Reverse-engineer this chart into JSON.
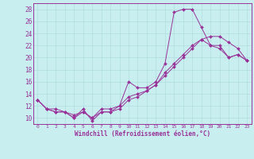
{
  "xlabel": "Windchill (Refroidissement éolien,°C)",
  "bg_color": "#c8eef0",
  "line_color": "#993399",
  "grid_color": "#b0dde0",
  "xlim": [
    -0.5,
    23.5
  ],
  "ylim": [
    9.0,
    29.0
  ],
  "xticks": [
    0,
    1,
    2,
    3,
    4,
    5,
    6,
    7,
    8,
    9,
    10,
    11,
    12,
    13,
    14,
    15,
    16,
    17,
    18,
    19,
    20,
    21,
    22,
    23
  ],
  "yticks": [
    10,
    12,
    14,
    16,
    18,
    20,
    22,
    24,
    26,
    28
  ],
  "line1_x": [
    0,
    1,
    2,
    3,
    4,
    5,
    6,
    7,
    8,
    9,
    10,
    11,
    12,
    13,
    14,
    15,
    16,
    17,
    18,
    19,
    20,
    21,
    22,
    23
  ],
  "line1_y": [
    13.0,
    11.5,
    11.0,
    11.0,
    10.0,
    11.5,
    9.5,
    11.0,
    11.0,
    12.0,
    16.0,
    15.0,
    15.0,
    16.0,
    19.0,
    27.5,
    28.0,
    28.0,
    25.0,
    22.0,
    22.0,
    20.0,
    20.5,
    19.5
  ],
  "line2_x": [
    0,
    1,
    2,
    3,
    4,
    5,
    6,
    7,
    8,
    9,
    10,
    11,
    12,
    13,
    14,
    15,
    16,
    17,
    18,
    19,
    20,
    21,
    22,
    23
  ],
  "line2_y": [
    13.0,
    11.5,
    11.0,
    11.0,
    10.0,
    11.0,
    10.0,
    11.0,
    11.0,
    11.5,
    13.0,
    13.5,
    14.5,
    15.5,
    17.5,
    19.0,
    20.5,
    22.0,
    23.0,
    22.0,
    21.5,
    20.0,
    20.5,
    19.5
  ],
  "line3_x": [
    0,
    1,
    2,
    3,
    4,
    5,
    6,
    7,
    8,
    9,
    10,
    11,
    12,
    13,
    14,
    15,
    16,
    17,
    18,
    19,
    20,
    21,
    22,
    23
  ],
  "line3_y": [
    13.0,
    11.5,
    11.5,
    11.0,
    10.5,
    11.0,
    10.0,
    11.5,
    11.5,
    12.0,
    13.5,
    14.0,
    14.5,
    15.5,
    17.0,
    18.5,
    20.0,
    21.5,
    23.0,
    23.5,
    23.5,
    22.5,
    21.5,
    19.5
  ]
}
